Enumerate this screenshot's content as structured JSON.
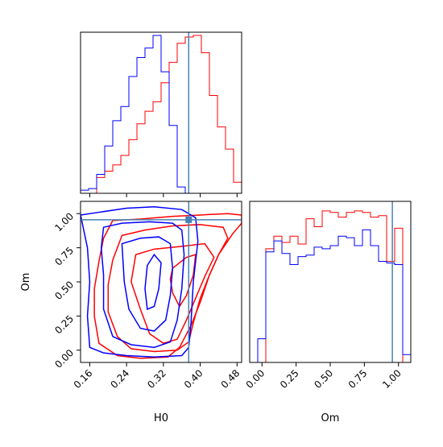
{
  "chart_data": {
    "type": "corner",
    "parameters": [
      "H0",
      "Om"
    ],
    "truth": {
      "H0": 0.375,
      "Om": 0.955
    },
    "truth_color": "#4682b4",
    "colors": {
      "red": "#ff0000",
      "blue": "#0000ff"
    },
    "axes": {
      "H0": {
        "range": [
          0.14,
          0.49
        ],
        "ticks": [
          0.16,
          0.24,
          0.32,
          0.4,
          0.48
        ],
        "tick_labels": [
          "0.16",
          "0.24",
          "0.32",
          "0.40",
          "0.48"
        ],
        "label": "H0"
      },
      "Om": {
        "range": [
          -0.09,
          1.09
        ],
        "ticks": [
          0.0,
          0.25,
          0.5,
          0.75,
          1.0
        ],
        "tick_labels": [
          "0.00",
          "0.25",
          "0.50",
          "0.75",
          "1.00"
        ],
        "label": "Om"
      }
    },
    "hist_H0": {
      "bin_edges": [
        0.14,
        0.1575,
        0.175,
        0.1925,
        0.21,
        0.2275,
        0.245,
        0.2625,
        0.28,
        0.2975,
        0.315,
        0.3325,
        0.35,
        0.3675,
        0.385,
        0.4025,
        0.42,
        0.4375,
        0.455,
        0.4725,
        0.49
      ],
      "red": [
        0.0,
        0.0,
        0.1,
        0.14,
        0.18,
        0.24,
        0.34,
        0.44,
        0.52,
        0.58,
        0.7,
        0.83,
        0.95,
        0.99,
        1.0,
        0.89,
        0.62,
        0.42,
        0.28,
        0.07
      ],
      "blue": [
        0.02,
        0.03,
        0.12,
        0.3,
        0.46,
        0.55,
        0.74,
        0.86,
        0.92,
        1.0,
        0.77,
        0.43,
        0.04,
        0.0,
        0.0,
        0.0,
        0.0,
        0.0,
        0.0,
        0.0
      ]
    },
    "hist_Om": {
      "bin_edges": [
        -0.09,
        -0.031,
        0.028,
        0.087,
        0.146,
        0.205,
        0.264,
        0.323,
        0.382,
        0.441,
        0.5,
        0.559,
        0.618,
        0.677,
        0.736,
        0.795,
        0.854,
        0.913,
        0.972,
        1.031,
        1.09
      ],
      "red": [
        0.0,
        0.0,
        0.72,
        0.8,
        0.76,
        0.8,
        0.75,
        0.91,
        0.86,
        0.96,
        0.95,
        0.92,
        0.95,
        0.96,
        0.95,
        0.92,
        0.93,
        0.64,
        0.85,
        0.0
      ],
      "blue": [
        0.0,
        0.15,
        0.7,
        0.77,
        0.69,
        0.62,
        0.67,
        0.68,
        0.73,
        0.72,
        0.74,
        0.8,
        0.79,
        0.74,
        0.84,
        0.74,
        0.64,
        0.63,
        0.62,
        0.05
      ]
    },
    "contours": {
      "red": [
        [
          [
            0.21,
            0.95
          ],
          [
            0.27,
            0.96
          ],
          [
            0.34,
            0.98
          ],
          [
            0.4,
            0.99
          ],
          [
            0.46,
            1.0
          ],
          [
            0.49,
            0.99
          ],
          [
            0.49,
            0.93
          ],
          [
            0.47,
            0.85
          ],
          [
            0.44,
            0.7
          ],
          [
            0.42,
            0.55
          ],
          [
            0.4,
            0.35
          ],
          [
            0.38,
            0.18
          ],
          [
            0.355,
            0.02
          ],
          [
            0.33,
            -0.05
          ],
          [
            0.27,
            -0.06
          ],
          [
            0.22,
            -0.04
          ],
          [
            0.18,
            0.05
          ],
          [
            0.17,
            0.25
          ],
          [
            0.17,
            0.45
          ],
          [
            0.18,
            0.65
          ],
          [
            0.19,
            0.82
          ],
          [
            0.21,
            0.95
          ]
        ],
        [
          [
            0.23,
            0.84
          ],
          [
            0.28,
            0.88
          ],
          [
            0.34,
            0.91
          ],
          [
            0.4,
            0.92
          ],
          [
            0.45,
            0.9
          ],
          [
            0.46,
            0.82
          ],
          [
            0.44,
            0.7
          ],
          [
            0.42,
            0.55
          ],
          [
            0.4,
            0.38
          ],
          [
            0.385,
            0.2
          ],
          [
            0.375,
            0.06
          ],
          [
            0.35,
            0.0
          ],
          [
            0.3,
            -0.01
          ],
          [
            0.25,
            0.01
          ],
          [
            0.22,
            0.1
          ],
          [
            0.2,
            0.28
          ],
          [
            0.2,
            0.48
          ],
          [
            0.21,
            0.66
          ],
          [
            0.23,
            0.84
          ]
        ],
        [
          [
            0.26,
            0.7
          ],
          [
            0.3,
            0.74
          ],
          [
            0.36,
            0.76
          ],
          [
            0.41,
            0.78
          ],
          [
            0.43,
            0.68
          ],
          [
            0.41,
            0.54
          ],
          [
            0.39,
            0.38
          ],
          [
            0.37,
            0.22
          ],
          [
            0.35,
            0.08
          ],
          [
            0.32,
            0.05
          ],
          [
            0.29,
            0.12
          ],
          [
            0.27,
            0.3
          ],
          [
            0.25,
            0.5
          ],
          [
            0.26,
            0.7
          ]
        ],
        [
          [
            0.34,
            0.6
          ],
          [
            0.37,
            0.68
          ],
          [
            0.39,
            0.7
          ],
          [
            0.385,
            0.55
          ],
          [
            0.37,
            0.4
          ],
          [
            0.355,
            0.32
          ],
          [
            0.34,
            0.42
          ],
          [
            0.335,
            0.52
          ],
          [
            0.34,
            0.6
          ]
        ]
      ],
      "blue": [
        [
          [
            0.14,
            0.99
          ],
          [
            0.18,
            1.01
          ],
          [
            0.24,
            1.04
          ],
          [
            0.3,
            1.05
          ],
          [
            0.36,
            1.03
          ],
          [
            0.39,
            0.97
          ],
          [
            0.395,
            0.8
          ],
          [
            0.385,
            0.5
          ],
          [
            0.38,
            0.2
          ],
          [
            0.375,
            0.02
          ],
          [
            0.36,
            -0.04
          ],
          [
            0.3,
            -0.05
          ],
          [
            0.24,
            -0.04
          ],
          [
            0.19,
            -0.02
          ],
          [
            0.16,
            0.02
          ],
          [
            0.155,
            0.25
          ],
          [
            0.16,
            0.5
          ],
          [
            0.155,
            0.75
          ],
          [
            0.14,
            0.99
          ]
        ],
        [
          [
            0.19,
            0.9
          ],
          [
            0.23,
            0.93
          ],
          [
            0.29,
            0.94
          ],
          [
            0.34,
            0.93
          ],
          [
            0.36,
            0.88
          ],
          [
            0.365,
            0.7
          ],
          [
            0.36,
            0.45
          ],
          [
            0.35,
            0.22
          ],
          [
            0.335,
            0.06
          ],
          [
            0.3,
            0.02
          ],
          [
            0.25,
            0.04
          ],
          [
            0.21,
            0.1
          ],
          [
            0.19,
            0.3
          ],
          [
            0.19,
            0.55
          ],
          [
            0.185,
            0.75
          ],
          [
            0.19,
            0.9
          ]
        ],
        [
          [
            0.23,
            0.78
          ],
          [
            0.27,
            0.82
          ],
          [
            0.31,
            0.83
          ],
          [
            0.335,
            0.78
          ],
          [
            0.34,
            0.6
          ],
          [
            0.335,
            0.4
          ],
          [
            0.325,
            0.22
          ],
          [
            0.3,
            0.14
          ],
          [
            0.27,
            0.16
          ],
          [
            0.245,
            0.3
          ],
          [
            0.235,
            0.5
          ],
          [
            0.23,
            0.78
          ]
        ],
        [
          [
            0.285,
            0.62
          ],
          [
            0.3,
            0.7
          ],
          [
            0.315,
            0.64
          ],
          [
            0.31,
            0.45
          ],
          [
            0.3,
            0.32
          ],
          [
            0.285,
            0.3
          ],
          [
            0.28,
            0.45
          ],
          [
            0.285,
            0.62
          ]
        ]
      ]
    }
  }
}
